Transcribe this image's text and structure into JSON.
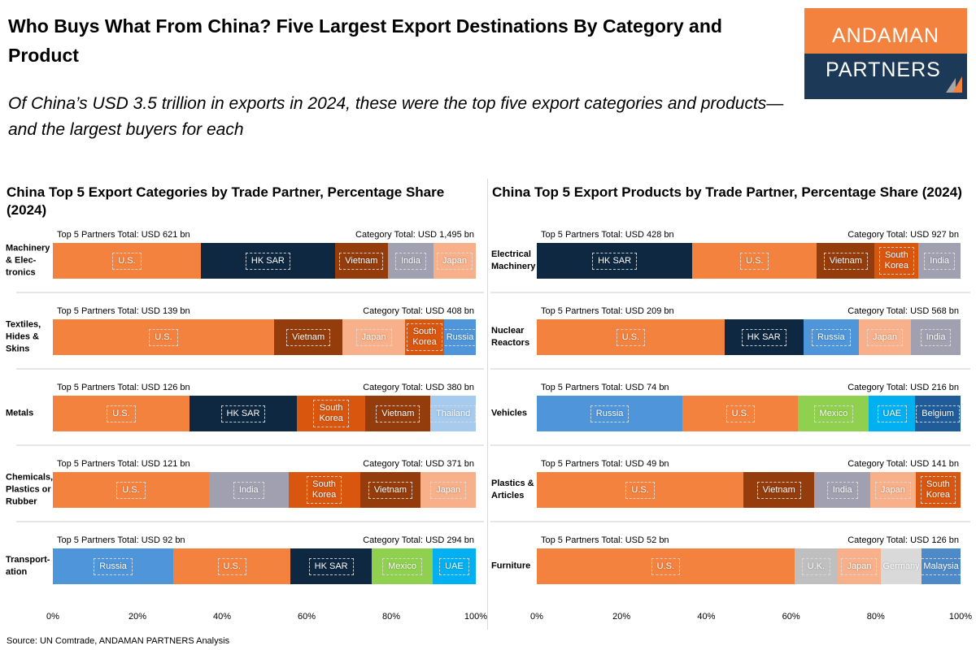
{
  "header": {
    "title": "Who Buys What From China? Five Largest Export Destinations By Category and Product",
    "subtitle": "Of China’s USD 3.5 trillion in exports in 2024, these were the top five export categories and products—and the largest buyers for each",
    "logo": {
      "line1": "ANDAMAN",
      "line2": "PARTNERS"
    }
  },
  "source": "Source: UN Comtrade, ANDAMAN PARTNERS Analysis",
  "colors": {
    "U.S.": "#F4823F",
    "HK SAR": "#0E2841",
    "Vietnam": "#943C0B",
    "India": "#A0A0B0",
    "Japan": "#F7B089",
    "South Korea": "#D9560F",
    "Russia": "#4F95D9",
    "Thailand": "#A6CBEF",
    "Mexico": "#8FD14F",
    "UAE": "#00B0F0",
    "Belgium": "#1F5C99",
    "U.K.": "#BFBFBF",
    "Germany": "#D9D9D9",
    "Malaysia": "#4E8AC8"
  },
  "chart_data": [
    {
      "type": "bar",
      "orientation": "horizontal",
      "stacked": "100%",
      "title": "China Top 5 Export Categories by Trade Partner, Percentage Share (2024)",
      "xlim": [
        0,
        100
      ],
      "xticks": [
        "0%",
        "20%",
        "40%",
        "60%",
        "80%",
        "100%"
      ],
      "rows": [
        {
          "label": "Machinery & Elec-tronics",
          "partners_total": "Top 5 Partners Total: USD 621 bn",
          "category_total": "Category Total: USD 1,495 bn",
          "segments": [
            {
              "partner": "U.S.",
              "value": 35
            },
            {
              "partner": "HK SAR",
              "value": 31.7
            },
            {
              "partner": "Vietnam",
              "value": 12.5
            },
            {
              "partner": "India",
              "value": 10.8
            },
            {
              "partner": "Japan",
              "value": 10
            }
          ]
        },
        {
          "label": "Textiles, Hides & Skins",
          "partners_total": "Top 5 Partners Total: USD 139 bn",
          "category_total": "Category Total: USD 408 bn",
          "segments": [
            {
              "partner": "U.S.",
              "value": 52.3
            },
            {
              "partner": "Vietnam",
              "value": 16.2
            },
            {
              "partner": "Japan",
              "value": 14.8
            },
            {
              "partner": "South Korea",
              "value": 9.2
            },
            {
              "partner": "Russia",
              "value": 7.5
            }
          ]
        },
        {
          "label": "Metals",
          "partners_total": "Top 5 Partners Total: USD 126 bn",
          "category_total": "Category Total: USD 380 bn",
          "segments": [
            {
              "partner": "U.S.",
              "value": 32.3
            },
            {
              "partner": "HK SAR",
              "value": 25.4
            },
            {
              "partner": "South Korea",
              "value": 16.2
            },
            {
              "partner": "Vietnam",
              "value": 15.4
            },
            {
              "partner": "Thailand",
              "value": 10.7
            }
          ]
        },
        {
          "label": "Chemicals, Plastics or Rubber",
          "partners_total": "Top 5 Partners Total: USD 121 bn",
          "category_total": "Category Total: USD 371 bn",
          "segments": [
            {
              "partner": "U.S.",
              "value": 36.9
            },
            {
              "partner": "India",
              "value": 18.8
            },
            {
              "partner": "South Korea",
              "value": 16.9
            },
            {
              "partner": "Vietnam",
              "value": 14.4
            },
            {
              "partner": "Japan",
              "value": 13
            }
          ]
        },
        {
          "label": "Transport-ation",
          "partners_total": "Top 5 Partners Total: USD 92 bn",
          "category_total": "Category Total: USD 294 bn",
          "segments": [
            {
              "partner": "Russia",
              "value": 28.5
            },
            {
              "partner": "U.S.",
              "value": 27.7
            },
            {
              "partner": "HK SAR",
              "value": 19.2
            },
            {
              "partner": "Mexico",
              "value": 14.4
            },
            {
              "partner": "UAE",
              "value": 10.2
            }
          ]
        }
      ]
    },
    {
      "type": "bar",
      "orientation": "horizontal",
      "stacked": "100%",
      "title": "China Top 5 Export Products by Trade Partner, Percentage Share (2024)",
      "xlim": [
        0,
        100
      ],
      "xticks": [
        "0%",
        "20%",
        "40%",
        "60%",
        "80%",
        "100%"
      ],
      "rows": [
        {
          "label": "Electrical Machinery",
          "partners_total": "Top 5 Partners Total: USD 428 bn",
          "category_total": "Category Total: USD 927 bn",
          "segments": [
            {
              "partner": "HK SAR",
              "value": 36.7
            },
            {
              "partner": "U.S.",
              "value": 29.4
            },
            {
              "partner": "Vietnam",
              "value": 13.6
            },
            {
              "partner": "South Korea",
              "value": 10.4
            },
            {
              "partner": "India",
              "value": 9.9
            }
          ]
        },
        {
          "label": "Nuclear Reactors",
          "partners_total": "Top 5 Partners Total: USD 209 bn",
          "category_total": "Category Total: USD 568 bn",
          "segments": [
            {
              "partner": "U.S.",
              "value": 44.3
            },
            {
              "partner": "HK SAR",
              "value": 18.6
            },
            {
              "partner": "Russia",
              "value": 13.1
            },
            {
              "partner": "Japan",
              "value": 12.3
            },
            {
              "partner": "India",
              "value": 11.7
            }
          ]
        },
        {
          "label": "Vehicles",
          "partners_total": "Top 5 Partners Total: USD 74 bn",
          "category_total": "Category Total: USD 216 bn",
          "segments": [
            {
              "partner": "Russia",
              "value": 34.4
            },
            {
              "partner": "U.S.",
              "value": 27.3
            },
            {
              "partner": "Mexico",
              "value": 16.7
            },
            {
              "partner": "UAE",
              "value": 10.9
            },
            {
              "partner": "Belgium",
              "value": 10.7
            }
          ]
        },
        {
          "label": "Plastics & Articles",
          "partners_total": "Top 5 Partners Total: USD 49 bn",
          "category_total": "Category Total: USD 141 bn",
          "segments": [
            {
              "partner": "U.S.",
              "value": 48.8
            },
            {
              "partner": "Vietnam",
              "value": 16.7
            },
            {
              "partner": "India",
              "value": 13.2
            },
            {
              "partner": "Japan",
              "value": 10.7
            },
            {
              "partner": "South Korea",
              "value": 10.6
            }
          ]
        },
        {
          "label": "Furniture",
          "partners_total": "Top 5 Partners Total: USD 52 bn",
          "category_total": "Category Total: USD 126 bn",
          "segments": [
            {
              "partner": "U.S.",
              "value": 60.8
            },
            {
              "partner": "U.K.",
              "value": 10.2
            },
            {
              "partner": "Japan",
              "value": 10.2
            },
            {
              "partner": "Germany",
              "value": 9.6
            },
            {
              "partner": "Malaysia",
              "value": 9.2
            }
          ]
        }
      ]
    }
  ]
}
